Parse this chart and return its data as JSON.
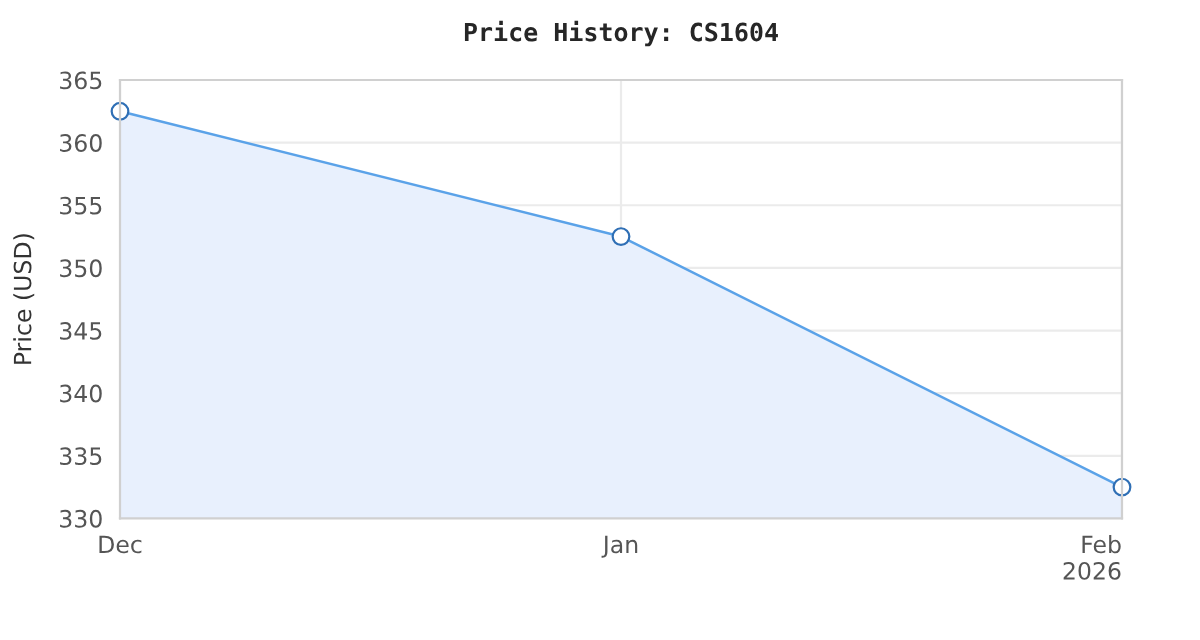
{
  "chart_data": {
    "type": "area",
    "title": "Price History: CS1604",
    "ylabel": "Price (USD)",
    "x": [
      "2025-12-01",
      "2026-01-01",
      "2026-02-01"
    ],
    "series": [
      {
        "color": "#5aa2e8",
        "values": [
          362.5,
          352.5,
          332.5
        ]
      }
    ],
    "xlim": [
      "2025-12-01",
      "2026-02-01"
    ],
    "xticks": [
      {
        "value": "2025-12-01",
        "label": "Dec"
      },
      {
        "value": "2026-01-01",
        "label": "Jan"
      },
      {
        "value": "2026-02-01",
        "label": "Feb\n2026"
      }
    ],
    "ylim": [
      330,
      365
    ],
    "yticks": [
      330,
      335,
      340,
      345,
      350,
      355,
      360,
      365
    ],
    "grid": true,
    "marker": "circle",
    "line_style": "solid",
    "legend": false
  }
}
